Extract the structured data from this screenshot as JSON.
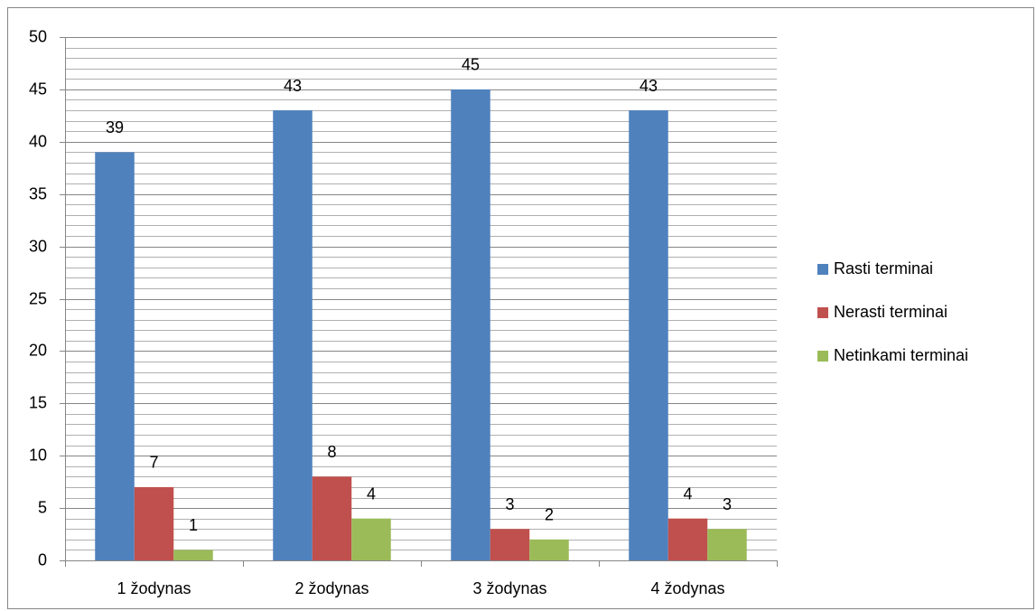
{
  "chart_data": {
    "type": "bar",
    "categories": [
      "1 žodynas",
      "2 žodynas",
      "3 žodynas",
      "4 žodynas"
    ],
    "series": [
      {
        "name": "Rasti terminai",
        "color": "#4f81bd",
        "values": [
          39,
          43,
          45,
          43
        ]
      },
      {
        "name": "Nerasti terminai",
        "color": "#c0504d",
        "values": [
          7,
          8,
          3,
          4
        ]
      },
      {
        "name": "Netinkami terminai",
        "color": "#9bbb59",
        "values": [
          1,
          4,
          2,
          3
        ]
      }
    ],
    "ylim": [
      0,
      50
    ],
    "yticks": [
      0,
      5,
      10,
      15,
      20,
      25,
      30,
      35,
      40,
      45,
      50
    ],
    "minor_yticks": [
      1,
      2,
      3,
      4,
      6,
      7,
      8,
      9,
      11,
      12,
      13,
      14,
      16,
      17,
      18,
      19,
      21,
      22,
      23,
      24,
      26,
      27,
      28,
      29,
      31,
      32,
      33,
      34,
      36,
      37,
      38,
      39,
      41,
      42,
      43,
      44,
      46,
      47,
      48,
      49
    ],
    "grid": true,
    "legend": "right"
  }
}
